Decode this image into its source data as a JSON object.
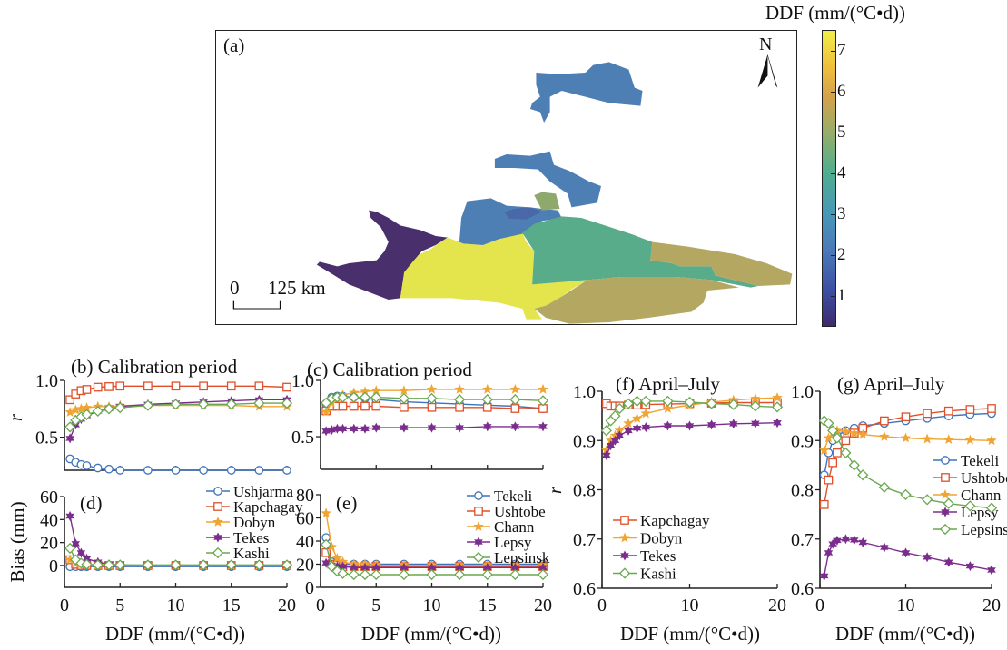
{
  "map": {
    "panel_label": "(a)",
    "north_label": "N",
    "scale_zero": "0",
    "scale_label": "125 km",
    "region_colors": {
      "purple": "#4a2f6d",
      "yellow": "#e4e44c",
      "blue": "#4d7fb4",
      "dark_blue": "#4868a8",
      "green": "#58ac8a",
      "olive": "#b3a762",
      "olive_small": "#8fa96c"
    }
  },
  "colorbar": {
    "title": "DDF (mm/(°C•d))",
    "range": [
      0.3,
      7.5
    ],
    "ticks": [
      "1",
      "2",
      "3",
      "4",
      "5",
      "6",
      "7"
    ],
    "colormap": "parula"
  },
  "series_colors": {
    "blue": "#3f73b8",
    "red": "#e0502a",
    "orange": "#f0a431",
    "purple": "#7b2d8e",
    "green": "#6aa84f"
  },
  "chart_data": [
    {
      "id": "b",
      "type": "line",
      "title": "(b) Calibration period",
      "ylabel": "r",
      "xlabel": "",
      "xlim": [
        0,
        20
      ],
      "ylim": [
        0.21,
        1.0
      ],
      "yticks": [
        "0.5",
        "1.0"
      ],
      "xticks": [],
      "x": [
        0.5,
        1,
        1.5,
        2,
        3,
        4,
        5,
        7.5,
        10,
        12.5,
        15,
        17.5,
        20
      ],
      "series": [
        {
          "name": "Ushjarma",
          "color": "blue",
          "marker": "circle",
          "values": [
            0.31,
            0.28,
            0.26,
            0.25,
            0.23,
            0.22,
            0.21,
            0.21,
            0.21,
            0.21,
            0.21,
            0.21,
            0.21
          ]
        },
        {
          "name": "Kapchagay",
          "color": "red",
          "marker": "square",
          "values": [
            0.83,
            0.88,
            0.91,
            0.92,
            0.94,
            0.945,
            0.95,
            0.95,
            0.95,
            0.95,
            0.95,
            0.95,
            0.94
          ]
        },
        {
          "name": "Dobyn",
          "color": "orange",
          "marker": "star",
          "values": [
            0.72,
            0.74,
            0.75,
            0.76,
            0.77,
            0.77,
            0.78,
            0.78,
            0.78,
            0.78,
            0.78,
            0.77,
            0.77
          ]
        },
        {
          "name": "Tekes",
          "color": "purple",
          "marker": "hexstar",
          "values": [
            0.49,
            0.61,
            0.66,
            0.69,
            0.73,
            0.75,
            0.77,
            0.79,
            0.8,
            0.81,
            0.82,
            0.83,
            0.83
          ]
        },
        {
          "name": "Kashi",
          "color": "green",
          "marker": "diamond",
          "values": [
            0.59,
            0.65,
            0.68,
            0.7,
            0.73,
            0.75,
            0.76,
            0.78,
            0.79,
            0.79,
            0.79,
            0.8,
            0.8
          ]
        }
      ]
    },
    {
      "id": "c",
      "type": "line",
      "title": "(c) Calibration period",
      "ylabel": "",
      "xlabel": "",
      "xlim": [
        0,
        20
      ],
      "ylim": [
        0.21,
        1.0
      ],
      "yticks": [
        "0.5",
        "1.0"
      ],
      "xticks": [],
      "x": [
        0.5,
        1,
        1.5,
        2,
        3,
        4,
        5,
        7.5,
        10,
        12.5,
        15,
        17.5,
        20
      ],
      "series": [
        {
          "name": "Tekeli",
          "color": "blue",
          "marker": "circle",
          "values": [
            0.79,
            0.85,
            0.86,
            0.86,
            0.85,
            0.84,
            0.83,
            0.81,
            0.8,
            0.79,
            0.78,
            0.77,
            0.75
          ]
        },
        {
          "name": "Ushtobe",
          "color": "red",
          "marker": "square",
          "values": [
            0.73,
            0.77,
            0.77,
            0.77,
            0.77,
            0.77,
            0.77,
            0.76,
            0.76,
            0.76,
            0.76,
            0.75,
            0.75
          ]
        },
        {
          "name": "Chann",
          "color": "orange",
          "marker": "star",
          "values": [
            0.72,
            0.8,
            0.85,
            0.87,
            0.89,
            0.9,
            0.91,
            0.91,
            0.92,
            0.92,
            0.92,
            0.92,
            0.92
          ]
        },
        {
          "name": "Lepsy",
          "color": "purple",
          "marker": "hexstar",
          "values": [
            0.55,
            0.56,
            0.57,
            0.57,
            0.57,
            0.57,
            0.58,
            0.58,
            0.58,
            0.58,
            0.59,
            0.59,
            0.59
          ]
        },
        {
          "name": "Lepsinsk",
          "color": "green",
          "marker": "diamond",
          "values": [
            0.8,
            0.84,
            0.85,
            0.85,
            0.85,
            0.85,
            0.85,
            0.84,
            0.84,
            0.83,
            0.83,
            0.83,
            0.82
          ]
        }
      ]
    },
    {
      "id": "d",
      "type": "line",
      "title": "(d)",
      "ylabel": "Bias (mm)",
      "xlabel": "DDF (mm/(°C•d))",
      "xlim": [
        0,
        20
      ],
      "ylim": [
        -19,
        60
      ],
      "yticks": [
        "0",
        "20",
        "40",
        "60"
      ],
      "xticks": [
        "0",
        "5",
        "10",
        "15",
        "20"
      ],
      "legend": "top-right",
      "x": [
        0.5,
        1,
        1.5,
        2,
        3,
        4,
        5,
        7.5,
        10,
        12.5,
        15,
        17.5,
        20
      ],
      "series": [
        {
          "name": "Ushjarma",
          "color": "blue",
          "marker": "circle",
          "values": [
            -1,
            -1,
            -1,
            -1,
            -1,
            -1,
            -1,
            -1,
            -1,
            -1,
            -1,
            -1,
            -1
          ]
        },
        {
          "name": "Kapchagay",
          "color": "red",
          "marker": "square",
          "values": [
            5,
            1,
            0,
            0,
            0,
            0,
            0,
            0,
            0,
            0,
            0,
            0,
            0
          ]
        },
        {
          "name": "Dobyn",
          "color": "orange",
          "marker": "star",
          "values": [
            5,
            2,
            1,
            0.5,
            0,
            0,
            0,
            0,
            0,
            0,
            0,
            0,
            0
          ]
        },
        {
          "name": "Tekes",
          "color": "purple",
          "marker": "hexstar",
          "values": [
            43,
            19,
            11,
            6,
            3,
            1,
            0.5,
            0,
            0,
            0,
            0,
            0,
            0
          ]
        },
        {
          "name": "Kashi",
          "color": "green",
          "marker": "diamond",
          "values": [
            15,
            5,
            2,
            1,
            0.5,
            0.5,
            0.5,
            0.5,
            0.5,
            0.5,
            0.5,
            0.5,
            0.5
          ]
        }
      ]
    },
    {
      "id": "e",
      "type": "line",
      "title": "(e)",
      "ylabel": "",
      "xlabel": "DDF (mm/(°C•d))",
      "xlim": [
        0,
        20
      ],
      "ylim": [
        0,
        80
      ],
      "yticks": [
        "0",
        "20",
        "40",
        "60",
        "80"
      ],
      "xticks": [
        "0",
        "5",
        "10",
        "15",
        "20"
      ],
      "legend": "top-right",
      "x": [
        0.5,
        1,
        1.5,
        2,
        3,
        4,
        5,
        7.5,
        10,
        12.5,
        15,
        17.5,
        20
      ],
      "series": [
        {
          "name": "Tekeli",
          "color": "blue",
          "marker": "circle",
          "values": [
            43,
            22,
            20,
            20,
            20,
            20,
            20,
            20,
            20,
            20,
            20,
            20,
            20
          ]
        },
        {
          "name": "Ushtobe",
          "color": "red",
          "marker": "square",
          "values": [
            30,
            20,
            19,
            18,
            18,
            18,
            18,
            18,
            18,
            18,
            18,
            18,
            18
          ]
        },
        {
          "name": "Chann",
          "color": "orange",
          "marker": "star",
          "values": [
            64,
            35,
            25,
            22,
            20,
            20,
            19,
            19,
            19,
            19,
            19,
            19,
            19
          ]
        },
        {
          "name": "Lepsy",
          "color": "purple",
          "marker": "hexstar",
          "values": [
            21,
            19,
            18,
            18,
            17,
            17,
            17,
            17,
            17,
            17,
            17,
            17,
            17
          ]
        },
        {
          "name": "Lepsinsk",
          "color": "green",
          "marker": "diamond",
          "values": [
            37,
            18,
            14,
            12,
            11,
            11,
            11,
            11,
            11,
            11,
            11,
            11,
            11
          ]
        }
      ]
    },
    {
      "id": "f",
      "type": "line",
      "title": "(f) April–July",
      "ylabel": "r",
      "xlabel": "DDF (mm/(°C•d))",
      "xlim": [
        0,
        20
      ],
      "ylim": [
        0.6,
        1.0
      ],
      "yticks": [
        "0.6",
        "0.7",
        "0.8",
        "0.9",
        "1.0"
      ],
      "xticks": [
        "0",
        "10",
        "20"
      ],
      "legend": "bottom-left",
      "x": [
        0.5,
        1,
        1.5,
        2,
        3,
        4,
        5,
        7.5,
        10,
        12.5,
        15,
        17.5,
        20
      ],
      "series": [
        {
          "name": "Kapchagay",
          "color": "red",
          "marker": "square",
          "values": [
            0.975,
            0.97,
            0.97,
            0.97,
            0.972,
            0.972,
            0.973,
            0.974,
            0.975,
            0.976,
            0.977,
            0.977,
            0.977
          ]
        },
        {
          "name": "Dobyn",
          "color": "orange",
          "marker": "star",
          "values": [
            0.88,
            0.9,
            0.91,
            0.92,
            0.935,
            0.945,
            0.955,
            0.965,
            0.972,
            0.978,
            0.982,
            0.985,
            0.987
          ]
        },
        {
          "name": "Tekes",
          "color": "purple",
          "marker": "hexstar",
          "values": [
            0.87,
            0.89,
            0.9,
            0.91,
            0.92,
            0.925,
            0.927,
            0.93,
            0.93,
            0.932,
            0.934,
            0.935,
            0.936
          ]
        },
        {
          "name": "Kashi",
          "color": "green",
          "marker": "diamond",
          "values": [
            0.92,
            0.94,
            0.95,
            0.965,
            0.975,
            0.98,
            0.98,
            0.98,
            0.978,
            0.975,
            0.973,
            0.97,
            0.968
          ]
        }
      ]
    },
    {
      "id": "g",
      "type": "line",
      "title": "(g) April–July",
      "ylabel": "",
      "xlabel": "DDF (mm/(°C•d))",
      "xlim": [
        0,
        20
      ],
      "ylim": [
        0.6,
        1.0
      ],
      "yticks": [
        "0.6",
        "0.7",
        "0.8",
        "0.9",
        "1.0"
      ],
      "xticks": [
        "0",
        "10",
        "20"
      ],
      "legend": "center-right",
      "x": [
        0.5,
        1,
        1.5,
        2,
        3,
        4,
        5,
        7.5,
        10,
        12.5,
        15,
        17.5,
        20
      ],
      "series": [
        {
          "name": "Tekeli",
          "color": "blue",
          "marker": "circle",
          "values": [
            0.83,
            0.875,
            0.9,
            0.91,
            0.92,
            0.925,
            0.93,
            0.935,
            0.94,
            0.945,
            0.95,
            0.953,
            0.955
          ]
        },
        {
          "name": "Ushtobe",
          "color": "red",
          "marker": "square",
          "values": [
            0.77,
            0.82,
            0.855,
            0.875,
            0.9,
            0.915,
            0.925,
            0.94,
            0.948,
            0.955,
            0.96,
            0.963,
            0.965
          ]
        },
        {
          "name": "Chann",
          "color": "orange",
          "marker": "star",
          "values": [
            0.88,
            0.905,
            0.915,
            0.92,
            0.918,
            0.915,
            0.912,
            0.908,
            0.905,
            0.903,
            0.902,
            0.901,
            0.9
          ]
        },
        {
          "name": "Lepsy",
          "color": "purple",
          "marker": "hexstar",
          "values": [
            0.625,
            0.672,
            0.69,
            0.697,
            0.7,
            0.698,
            0.693,
            0.683,
            0.672,
            0.663,
            0.653,
            0.645,
            0.637
          ]
        },
        {
          "name": "Lepsinsk",
          "color": "green",
          "marker": "diamond",
          "values": [
            0.94,
            0.935,
            0.92,
            0.905,
            0.875,
            0.85,
            0.83,
            0.805,
            0.79,
            0.78,
            0.772,
            0.767,
            0.763
          ]
        }
      ]
    }
  ]
}
